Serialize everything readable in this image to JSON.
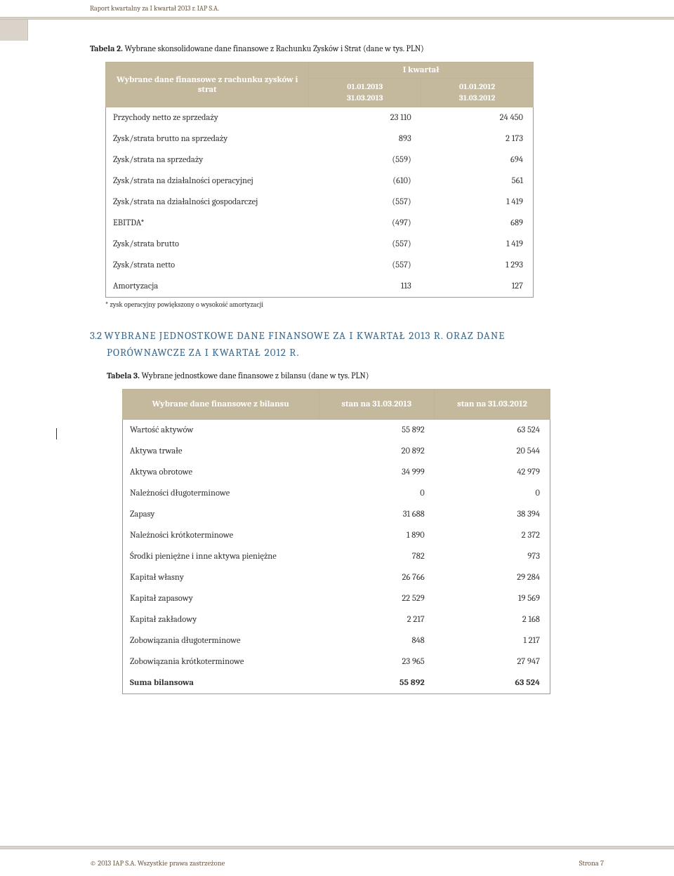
{
  "header": {
    "running": "Raport kwartalny za I kwartał 2013 r. IAP S.A."
  },
  "table2": {
    "caption_bold": "Tabela 2.",
    "caption_rest": " Wybrane skonsolidowane dane finansowe z Rachunku Zysków i Strat (dane w tys. PLN)",
    "header_left": "Wybrane dane finansowe z rachunku zysków i strat",
    "quarter": "I kwartał",
    "p1a": "01.01.2013",
    "p1b": "31.03.2013",
    "p2a": "01.01.2012",
    "p2b": "31.03.2012",
    "rows": [
      {
        "label": "Przychody netto ze sprzedaży",
        "v1": "23 110",
        "v2": "24 450"
      },
      {
        "label": "Zysk/strata brutto na sprzedaży",
        "v1": "893",
        "v2": "2 173"
      },
      {
        "label": "Zysk/strata na sprzedaży",
        "v1": "(559)",
        "v2": "694"
      },
      {
        "label": "Zysk/strata na działalności operacyjnej",
        "v1": "(610)",
        "v2": "561"
      },
      {
        "label": "Zysk/strata na działalności gospodarczej",
        "v1": "(557)",
        "v2": "1 419"
      },
      {
        "label": "EBITDA*",
        "v1": "(497)",
        "v2": "689"
      },
      {
        "label": "Zysk/strata brutto",
        "v1": "(557)",
        "v2": "1 419"
      },
      {
        "label": "Zysk/strata netto",
        "v1": "(557)",
        "v2": "1 293"
      },
      {
        "label": "Amortyzacja",
        "v1": "113",
        "v2": "127"
      }
    ],
    "footnote": "* zysk operacyjny powiększony o wysokość amortyzacji"
  },
  "section32": {
    "num": "3.2",
    "line1": "WYBRANE  JEDNOSTKOWE  DANE  FINANSOWE  ZA  I  KWARTAŁ  2013  R.  ORAZ  DANE",
    "line2": "PORÓWNAWCZE ZA I KWARTAŁ 2012 R."
  },
  "table3": {
    "caption_bold": "Tabela 3.",
    "caption_rest": " Wybrane jednostkowe dane finansowe z bilansu (dane w tys. PLN)",
    "header_left": "Wybrane dane finansowe z bilansu",
    "col1": "stan na 31.03.2013",
    "col2": "stan na 31.03.2012",
    "rows": [
      {
        "label": "Wartość aktywów",
        "v1": "55 892",
        "v2": "63 524"
      },
      {
        "label": "Aktywa trwałe",
        "v1": "20 892",
        "v2": "20 544"
      },
      {
        "label": "Aktywa obrotowe",
        "v1": "34 999",
        "v2": "42 979"
      },
      {
        "label": "Należności długoterminowe",
        "v1": "0",
        "v2": "0"
      },
      {
        "label": "Zapasy",
        "v1": "31 688",
        "v2": "38 394"
      },
      {
        "label": "Należności krótkoterminowe",
        "v1": "1 890",
        "v2": "2 372"
      },
      {
        "label": "Środki pieniężne i inne aktywa pieniężne",
        "v1": "782",
        "v2": "973"
      },
      {
        "label": "Kapitał własny",
        "v1": "26 766",
        "v2": "29 284"
      },
      {
        "label": "Kapitał zapasowy",
        "v1": "22 529",
        "v2": "19 569"
      },
      {
        "label": "Kapitał zakładowy",
        "v1": "2 217",
        "v2": "2 168"
      },
      {
        "label": "Zobowiązania długoterminowe",
        "v1": "848",
        "v2": "1 217"
      },
      {
        "label": "Zobowiązania krótkoterminowe",
        "v1": "23 965",
        "v2": "27 947"
      },
      {
        "label": "Suma bilansowa",
        "v1": "55 892",
        "v2": "63 524"
      }
    ]
  },
  "footer": {
    "left": "© 2013 IAP S.A. Wszystkie prawa zastrzeżone",
    "right": "Strona 7"
  }
}
